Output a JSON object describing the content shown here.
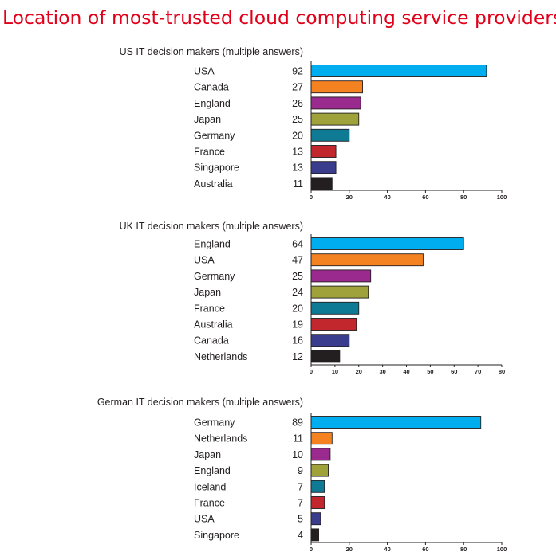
{
  "title": "Location of most-trusted cloud computing service providers (%)",
  "colors": {
    "title": "#e1001a",
    "bars": [
      "#00aeef",
      "#f58220",
      "#9b2a8f",
      "#9fa23a",
      "#0f7a94",
      "#c1272d",
      "#3a3c8e",
      "#231f20"
    ],
    "text": "#231f20"
  },
  "chart_data": [
    {
      "type": "bar",
      "orientation": "horizontal",
      "title": "US IT decision makers (multiple answers)",
      "categories": [
        "USA",
        "Canada",
        "England",
        "Japan",
        "Germany",
        "France",
        "Singapore",
        "Australia"
      ],
      "values": [
        92,
        27,
        26,
        25,
        20,
        13,
        13,
        11
      ],
      "xlim": [
        0,
        100
      ],
      "ticks": [
        0,
        20,
        40,
        60,
        80,
        100
      ]
    },
    {
      "type": "bar",
      "orientation": "horizontal",
      "title": "UK IT decision makers (multiple answers)",
      "categories": [
        "England",
        "USA",
        "Germany",
        "Japan",
        "France",
        "Australia",
        "Canada",
        "Netherlands"
      ],
      "values": [
        64,
        47,
        25,
        24,
        20,
        19,
        16,
        12
      ],
      "xlim": [
        0,
        80
      ],
      "ticks": [
        0,
        10,
        20,
        30,
        40,
        50,
        60,
        70,
        80
      ]
    },
    {
      "type": "bar",
      "orientation": "horizontal",
      "title": "German IT decision makers (multiple answers)",
      "categories": [
        "Germany",
        "Netherlands",
        "Japan",
        "England",
        "Iceland",
        "France",
        "USA",
        "Singapore"
      ],
      "values": [
        89,
        11,
        10,
        9,
        7,
        7,
        5,
        4
      ],
      "xlim": [
        0,
        100
      ],
      "ticks": [
        0,
        20,
        40,
        60,
        80,
        100
      ]
    }
  ]
}
